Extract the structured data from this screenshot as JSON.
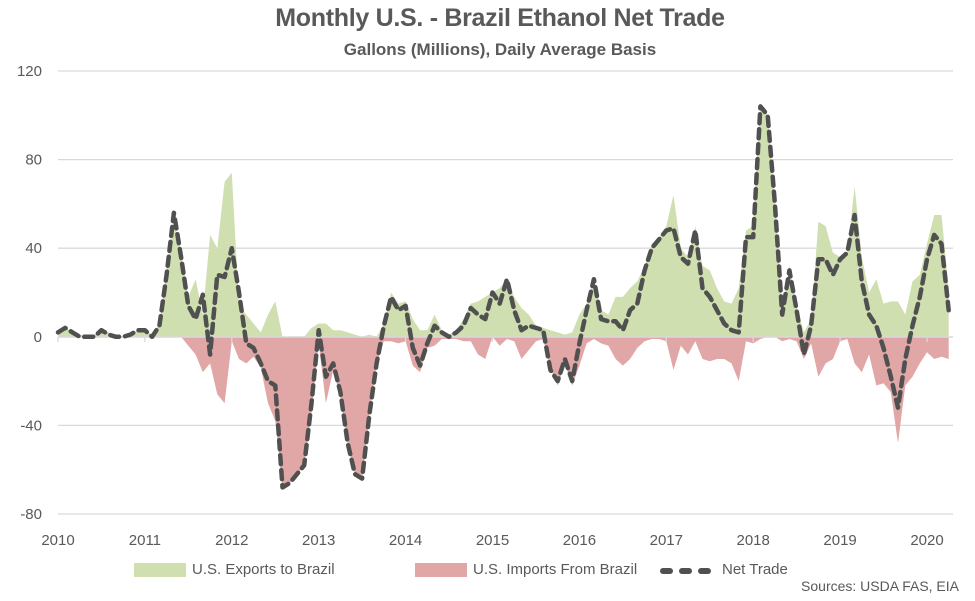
{
  "chart_data": {
    "type": "area",
    "title": "Monthly U.S. - Brazil Ethanol Net Trade",
    "subtitle": "Gallons (Millions), Daily Average Basis",
    "xlabel": "",
    "ylabel": "",
    "ylim": [
      -80,
      120
    ],
    "yticks": [
      120,
      80,
      40,
      0,
      -40,
      -80
    ],
    "ytick_labels": [
      "120",
      "80",
      "40",
      "0",
      "-40",
      "-80"
    ],
    "xtick_labels": [
      "2010",
      "2011",
      "2012",
      "2013",
      "2014",
      "2015",
      "2016",
      "2017",
      "2018",
      "2019",
      "2020"
    ],
    "x_start": "2010-01",
    "x_end": "2020-04",
    "x_frequency": "monthly",
    "grid": "horizontal",
    "legend_position": "bottom",
    "series": [
      {
        "name": "U.S. Exports to Brazil",
        "kind": "area",
        "color": "#cfdfb0",
        "values": [
          2,
          4,
          2,
          1,
          0,
          1,
          3,
          2,
          1,
          0,
          1,
          3,
          3,
          1,
          6,
          30,
          52,
          38,
          18,
          26,
          10,
          46,
          40,
          70,
          74,
          14,
          10,
          6,
          2,
          10,
          16,
          0,
          0,
          0,
          0,
          4,
          6,
          6,
          3,
          3,
          2,
          1,
          0,
          1,
          0,
          6,
          20,
          15,
          16,
          8,
          3,
          3,
          10,
          3,
          1,
          3,
          8,
          15,
          16,
          18,
          20,
          22,
          26,
          18,
          13,
          10,
          5,
          4,
          3,
          2,
          1,
          2,
          10,
          15,
          26,
          12,
          10,
          18,
          18,
          22,
          25,
          32,
          42,
          45,
          50,
          64,
          40,
          36,
          50,
          32,
          30,
          22,
          16,
          15,
          22,
          48,
          50,
          105,
          100,
          60,
          12,
          32,
          14,
          2,
          8,
          52,
          50,
          38,
          36,
          38,
          68,
          36,
          20,
          26,
          15,
          16,
          16,
          10,
          25,
          28,
          42,
          55,
          55,
          22
        ]
      },
      {
        "name": "U.S. Imports From Brazil",
        "kind": "area",
        "color": "#e0a7a6",
        "values": [
          0,
          0,
          0,
          0,
          0,
          0,
          0,
          0,
          0,
          0,
          0,
          0,
          0,
          0,
          0,
          0,
          0,
          0,
          -4,
          -8,
          -16,
          -12,
          -26,
          -30,
          -2,
          -10,
          -12,
          -9,
          -14,
          -30,
          -38,
          -68,
          -66,
          -62,
          -58,
          -34,
          -3,
          -30,
          -15,
          -27,
          -48,
          -62,
          -64,
          -35,
          -12,
          -2,
          -2,
          -3,
          -2,
          -13,
          -16,
          -5,
          -4,
          -1,
          -1,
          -1,
          -2,
          -2,
          -8,
          -10,
          0,
          -4,
          -1,
          -2,
          -10,
          -6,
          -2,
          -1,
          -14,
          -22,
          -12,
          -22,
          -13,
          -3,
          -1,
          -3,
          -4,
          -10,
          -13,
          -10,
          -5,
          -2,
          -1,
          -1,
          -2,
          -15,
          -4,
          -8,
          -2,
          -10,
          -11,
          -10,
          -10,
          -12,
          -20,
          -2,
          -3,
          -1,
          0,
          0,
          -2,
          -1,
          -2,
          -10,
          -3,
          -18,
          -12,
          -10,
          -2,
          -1,
          -12,
          -16,
          -8,
          -22,
          -21,
          -25,
          -48,
          -22,
          -18,
          -12,
          -7,
          -10,
          -9,
          -10
        ]
      },
      {
        "name": "Net Trade",
        "kind": "dashed-line",
        "color": "#505050",
        "values": [
          2,
          4,
          2,
          0,
          0,
          0,
          3,
          1,
          0,
          0,
          1,
          3,
          3,
          0,
          5,
          28,
          56,
          36,
          14,
          8,
          19,
          -8,
          28,
          27,
          40,
          20,
          -3,
          -5,
          -12,
          -20,
          -22,
          -68,
          -66,
          -62,
          -58,
          -30,
          3,
          -18,
          -12,
          -25,
          -48,
          -62,
          -64,
          -35,
          -12,
          5,
          18,
          12,
          14,
          -5,
          -13,
          -3,
          5,
          2,
          0,
          2,
          5,
          13,
          10,
          8,
          20,
          15,
          26,
          12,
          3,
          5,
          4,
          3,
          -15,
          -20,
          -10,
          -20,
          -3,
          12,
          26,
          8,
          7,
          7,
          3,
          12,
          15,
          30,
          40,
          44,
          48,
          49,
          36,
          33,
          48,
          22,
          18,
          12,
          6,
          3,
          2,
          45,
          45,
          104,
          100,
          60,
          10,
          30,
          12,
          -8,
          5,
          35,
          35,
          28,
          35,
          38,
          55,
          25,
          10,
          5,
          -5,
          -18,
          -32,
          -10,
          5,
          18,
          35,
          46,
          42,
          12
        ]
      }
    ]
  },
  "legend": {
    "exports_label": "U.S. Exports to Brazil",
    "imports_label": "U.S. Imports From Brazil",
    "net_label": "Net Trade"
  },
  "source": "Sources: USDA FAS, EIA"
}
